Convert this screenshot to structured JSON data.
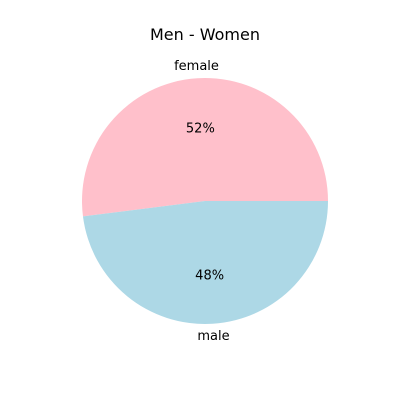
{
  "chart_data": {
    "type": "pie",
    "title": "Men - Women",
    "labels": [
      "female",
      "male"
    ],
    "values": [
      52,
      48
    ],
    "percent_labels": [
      "52%",
      "48%"
    ],
    "colors": [
      "#FFC0CB",
      "#ADD8E6"
    ],
    "start_angle_deg": 0,
    "direction": "counterclockwise",
    "legend": "none"
  }
}
